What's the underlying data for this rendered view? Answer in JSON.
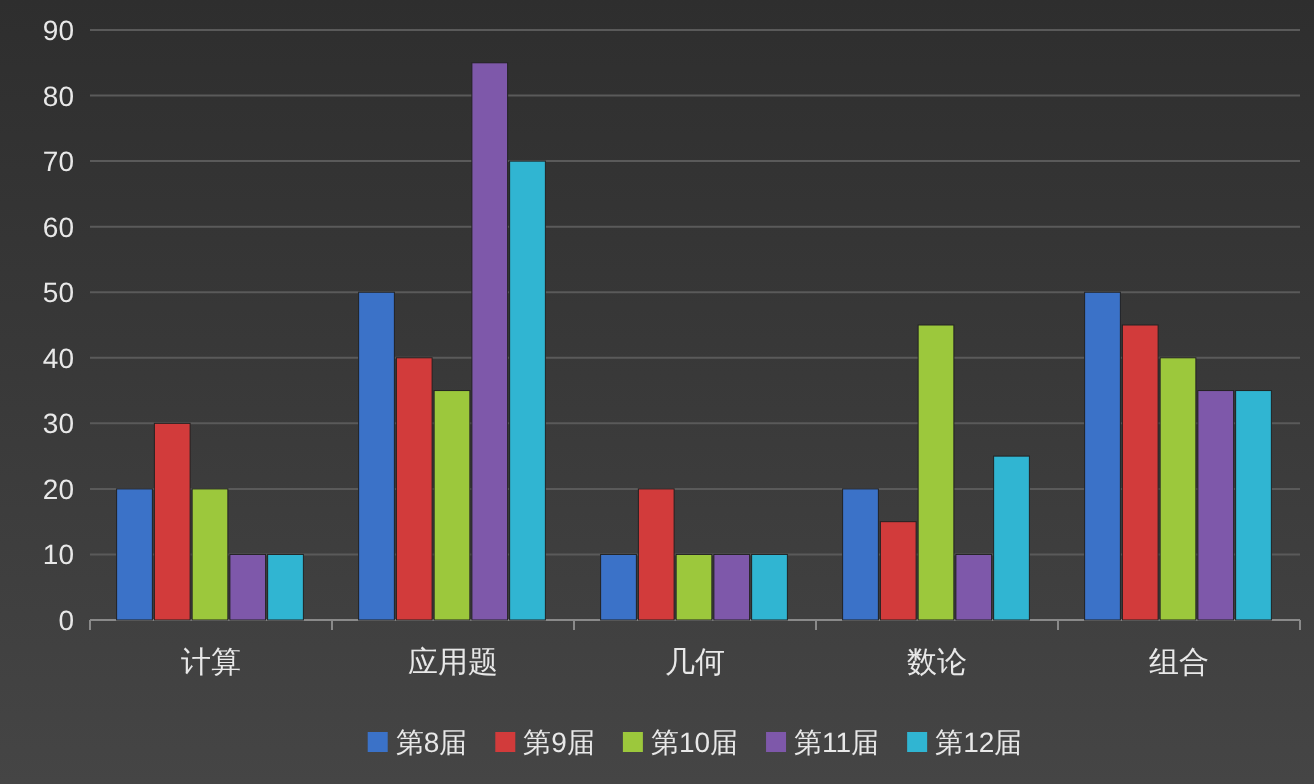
{
  "chart_data": {
    "type": "bar",
    "categories": [
      "计算",
      "应用题",
      "几何",
      "数论",
      "组合"
    ],
    "series": [
      {
        "name": "第8届",
        "color": "#3b72c8",
        "values": [
          20,
          50,
          10,
          20,
          50
        ]
      },
      {
        "name": "第9届",
        "color": "#d23b3b",
        "values": [
          30,
          40,
          20,
          15,
          45
        ]
      },
      {
        "name": "第10届",
        "color": "#9cc83c",
        "values": [
          20,
          35,
          10,
          45,
          40
        ]
      },
      {
        "name": "第11届",
        "color": "#7e58aa",
        "values": [
          10,
          85,
          10,
          10,
          35
        ]
      },
      {
        "name": "第12届",
        "color": "#30b5d2",
        "values": [
          10,
          70,
          10,
          25,
          35
        ]
      }
    ],
    "ylim": [
      0,
      90
    ],
    "yticks": [
      0,
      10,
      20,
      30,
      40,
      50,
      60,
      70,
      80,
      90
    ],
    "grid": "y",
    "legend": "bottom"
  }
}
